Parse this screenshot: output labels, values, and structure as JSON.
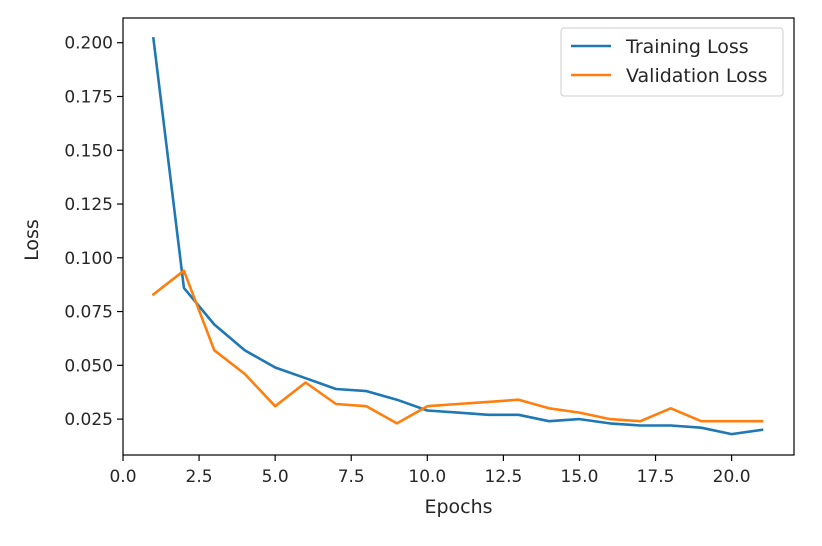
{
  "chart_data": {
    "type": "line",
    "title": "",
    "xlabel": "Epochs",
    "ylabel": "Loss",
    "xlim": [
      0,
      22.05
    ],
    "ylim": [
      0.0083,
      0.2115
    ],
    "xticks": [
      0,
      2.5,
      5,
      7.5,
      10,
      12.5,
      15,
      17.5,
      20
    ],
    "xtick_labels": [
      "0.0",
      "2.5",
      "5.0",
      "7.5",
      "10.0",
      "12.5",
      "15.0",
      "17.5",
      "20.0"
    ],
    "yticks": [
      0.025,
      0.05,
      0.075,
      0.1,
      0.125,
      0.15,
      0.175,
      0.2
    ],
    "ytick_labels": [
      "0.025",
      "0.050",
      "0.075",
      "0.100",
      "0.125",
      "0.150",
      "0.175",
      "0.200"
    ],
    "grid": false,
    "legend_position": "top-right",
    "x": [
      1,
      2,
      3,
      4,
      5,
      6,
      7,
      8,
      9,
      10,
      11,
      12,
      13,
      14,
      15,
      16,
      17,
      18,
      19,
      20,
      21
    ],
    "series": [
      {
        "name": "Training Loss",
        "color": "#1f77b4",
        "values": [
          0.202,
          0.086,
          0.069,
          0.057,
          0.049,
          0.044,
          0.039,
          0.038,
          0.034,
          0.029,
          0.028,
          0.027,
          0.027,
          0.024,
          0.025,
          0.023,
          0.022,
          0.022,
          0.021,
          0.018,
          0.02
        ]
      },
      {
        "name": "Validation Loss",
        "color": "#ff7f0e",
        "values": [
          0.083,
          0.094,
          0.057,
          0.046,
          0.031,
          0.042,
          0.032,
          0.031,
          0.023,
          0.031,
          0.032,
          0.033,
          0.034,
          0.03,
          0.028,
          0.025,
          0.024,
          0.03,
          0.024,
          0.024,
          0.024
        ]
      }
    ]
  }
}
